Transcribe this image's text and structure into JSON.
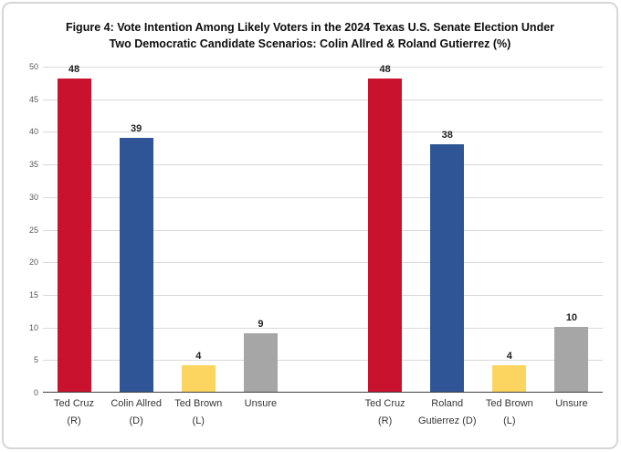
{
  "figure": {
    "title_full": "Figure 4: Vote Intention Among Likely Voters in the 2024 Texas U.S. Senate Election Under Two Democratic Candidate Scenarios: Colin Allred & Roland Gutierrez (%)",
    "title_lines": [
      "Figure 4: Vote Intention Among Likely Voters in the 2024 Texas U.S. Senate Election Under",
      "Two Democratic Candidate Scenarios: Colin Allred & Roland Gutierrez (%)"
    ]
  },
  "chart_data": {
    "type": "bar",
    "title": "Figure 4: Vote Intention Among Likely Voters in the 2024 Texas U.S. Senate Election Under Two Democratic Candidate Scenarios: Colin Allred & Roland Gutierrez (%)",
    "xlabel": "",
    "ylabel": "",
    "ylim": [
      0,
      50
    ],
    "ytick_step": 5,
    "yticks": [
      0,
      5,
      10,
      15,
      20,
      25,
      30,
      35,
      40,
      45,
      50
    ],
    "grid": true,
    "legend": "none",
    "groups": [
      {
        "name": "Colin Allred scenario",
        "categories": [
          "Ted Cruz (R)",
          "Colin Allred (D)",
          "Ted Brown (L)",
          "Unsure"
        ],
        "values": [
          48,
          39,
          4,
          9
        ]
      },
      {
        "name": "Roland Gutierrez scenario",
        "categories": [
          "Ted Cruz (R)",
          "Roland Gutierrez (D)",
          "Ted Brown (L)",
          "Unsure"
        ],
        "values": [
          48,
          38,
          4,
          10
        ]
      }
    ],
    "palette": {
      "red": "#C9122D",
      "blue": "#2F5597",
      "yellow": "#FBD560",
      "gray": "#A6A6A6"
    },
    "axis_colors": {
      "grid": "#D9D9D9",
      "axis_line": "#404040",
      "tick_label": "#595959"
    },
    "total_slots": 9,
    "bars": [
      {
        "name": "bar-ted-cruz-scenario-1",
        "slot": 0,
        "value": 48,
        "color": "red",
        "label_lines": [
          "Ted Cruz",
          "(R)"
        ]
      },
      {
        "name": "bar-colin-allred-scenario-1",
        "slot": 1,
        "value": 39,
        "color": "blue",
        "label_lines": [
          "Colin Allred",
          "(D)"
        ]
      },
      {
        "name": "bar-ted-brown-scenario-1",
        "slot": 2,
        "value": 4,
        "color": "yellow",
        "label_lines": [
          "Ted Brown",
          "(L)"
        ]
      },
      {
        "name": "bar-unsure-scenario-1",
        "slot": 3,
        "value": 9,
        "color": "gray",
        "label_lines": [
          "Unsure"
        ]
      },
      {
        "name": "bar-ted-cruz-scenario-2",
        "slot": 5,
        "value": 48,
        "color": "red",
        "label_lines": [
          "Ted Cruz",
          "(R)"
        ]
      },
      {
        "name": "bar-roland-gutierrez-scenario-2",
        "slot": 6,
        "value": 38,
        "color": "blue",
        "label_lines": [
          "Roland",
          "Gutierrez (D)"
        ]
      },
      {
        "name": "bar-ted-brown-scenario-2",
        "slot": 7,
        "value": 4,
        "color": "yellow",
        "label_lines": [
          "Ted Brown",
          "(L)"
        ]
      },
      {
        "name": "bar-unsure-scenario-2",
        "slot": 8,
        "value": 10,
        "color": "gray",
        "label_lines": [
          "Unsure"
        ]
      }
    ]
  }
}
